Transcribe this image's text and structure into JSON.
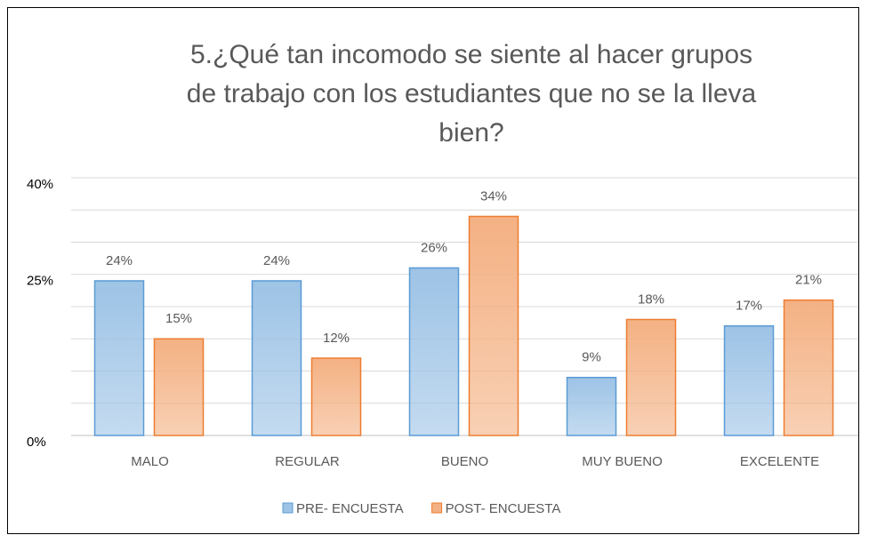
{
  "chart_data": {
    "type": "bar",
    "title": "5.¿Qué tan incomodo se siente al hacer grupos de trabajo con los estudiantes que no se la lleva bien?",
    "categories": [
      "MALO",
      "REGULAR",
      "BUENO",
      "MUY BUENO",
      "EXCELENTE"
    ],
    "series": [
      {
        "name": "PRE- ENCUESTA",
        "color": "#9dc3e6",
        "values": [
          24,
          24,
          26,
          9,
          17
        ],
        "value_labels": [
          "24%",
          "24%",
          "26%",
          "9%",
          "17%"
        ]
      },
      {
        "name": "POST- ENCUESTA",
        "color": "#f4b183",
        "values": [
          15,
          12,
          34,
          18,
          21
        ],
        "value_labels": [
          "15%",
          "12%",
          "34%",
          "18%",
          "21%"
        ]
      }
    ],
    "ylim": [
      0,
      40
    ],
    "yticks": [
      {
        "value": 0,
        "label": "0%"
      },
      {
        "value": 25,
        "label": "25%"
      },
      {
        "value": 40,
        "label": "40%"
      }
    ],
    "minor_yticks": [
      5,
      10,
      15,
      20,
      30,
      35
    ],
    "grid": true,
    "legend": "bottom"
  }
}
